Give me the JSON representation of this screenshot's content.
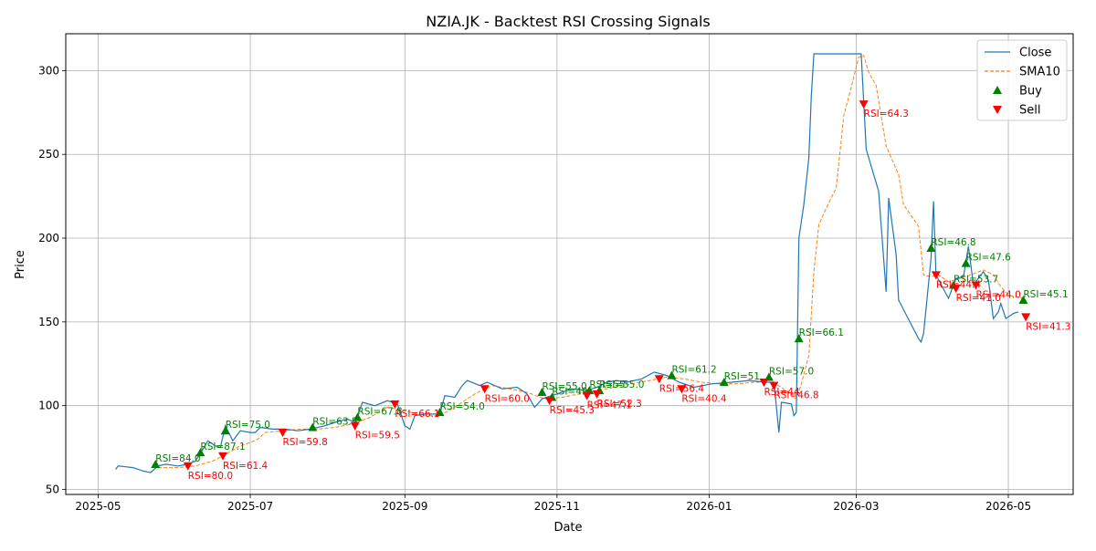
{
  "chart_data": {
    "type": "line",
    "title": "NZIA.JK - Backtest RSI Crossing Signals",
    "xlabel": "Date",
    "ylabel": "Price",
    "xlim": [
      "2025-04-18",
      "2026-05-27"
    ],
    "ylim": [
      47,
      322
    ],
    "x_ticks": [
      "2025-05-01",
      "2025-07-01",
      "2025-09-01",
      "2025-11-01",
      "2026-01-01",
      "2026-03-01",
      "2026-05-01"
    ],
    "x_tick_labels": [
      "2025-05",
      "2025-07",
      "2025-09",
      "2025-11",
      "2026-01",
      "2026-03",
      "2026-05"
    ],
    "y_ticks": [
      50,
      100,
      150,
      200,
      250,
      300
    ],
    "grid": true,
    "legend_position": "top-right",
    "colors": {
      "close": "#1f77b4",
      "sma": "#ff7f0e",
      "buy": "#008000",
      "sell": "#ff0000"
    },
    "series": [
      {
        "name": "Close",
        "style": "solid",
        "points": [
          [
            "2025-05-08",
            62
          ],
          [
            "2025-05-09",
            64
          ],
          [
            "2025-05-12",
            63.5
          ],
          [
            "2025-05-15",
            63
          ],
          [
            "2025-05-19",
            61
          ],
          [
            "2025-05-22",
            60
          ],
          [
            "2025-05-25",
            64
          ],
          [
            "2025-05-28",
            65
          ],
          [
            "2025-06-02",
            64
          ],
          [
            "2025-06-06",
            65
          ],
          [
            "2025-06-09",
            67
          ],
          [
            "2025-06-12",
            74
          ],
          [
            "2025-06-14",
            79
          ],
          [
            "2025-06-17",
            76
          ],
          [
            "2025-06-19",
            75
          ],
          [
            "2025-06-21",
            88
          ],
          [
            "2025-06-24",
            79
          ],
          [
            "2025-06-27",
            85
          ],
          [
            "2025-07-01",
            84
          ],
          [
            "2025-07-03",
            84
          ],
          [
            "2025-07-05",
            87
          ],
          [
            "2025-07-10",
            86
          ],
          [
            "2025-07-15",
            86
          ],
          [
            "2025-07-20",
            85
          ],
          [
            "2025-07-25",
            86
          ],
          [
            "2025-07-31",
            88
          ],
          [
            "2025-08-04",
            90
          ],
          [
            "2025-08-09",
            92
          ],
          [
            "2025-08-12",
            90
          ],
          [
            "2025-08-15",
            102
          ],
          [
            "2025-08-20",
            100
          ],
          [
            "2025-08-25",
            103
          ],
          [
            "2025-08-29",
            101
          ],
          [
            "2025-09-01",
            88
          ],
          [
            "2025-09-03",
            86
          ],
          [
            "2025-09-05",
            94
          ],
          [
            "2025-09-09",
            95
          ],
          [
            "2025-09-15",
            95
          ],
          [
            "2025-09-17",
            106
          ],
          [
            "2025-09-21",
            105
          ],
          [
            "2025-09-24",
            112
          ],
          [
            "2025-09-26",
            115
          ],
          [
            "2025-10-01",
            112
          ],
          [
            "2025-10-04",
            114
          ],
          [
            "2025-10-10",
            110
          ],
          [
            "2025-10-16",
            111
          ],
          [
            "2025-10-20",
            107
          ],
          [
            "2025-10-23",
            99
          ],
          [
            "2025-10-26",
            104
          ],
          [
            "2025-11-01",
            107
          ],
          [
            "2025-11-07",
            110
          ],
          [
            "2025-11-13",
            109
          ],
          [
            "2025-11-17",
            111
          ],
          [
            "2025-11-21",
            114
          ],
          [
            "2025-11-25",
            115
          ],
          [
            "2025-11-29",
            114
          ],
          [
            "2025-12-05",
            116
          ],
          [
            "2025-12-10",
            120
          ],
          [
            "2025-12-15",
            118
          ],
          [
            "2025-12-20",
            114
          ],
          [
            "2025-12-26",
            111
          ],
          [
            "2026-01-02",
            113
          ],
          [
            "2026-01-10",
            114
          ],
          [
            "2026-01-17",
            115
          ],
          [
            "2026-01-24",
            114
          ],
          [
            "2026-01-27",
            114
          ],
          [
            "2026-01-29",
            84
          ],
          [
            "2026-01-30",
            102
          ],
          [
            "2026-02-03",
            101
          ],
          [
            "2026-02-04",
            94
          ],
          [
            "2026-02-05",
            96
          ],
          [
            "2026-02-06",
            200
          ],
          [
            "2026-02-08",
            220
          ],
          [
            "2026-02-10",
            248
          ],
          [
            "2026-02-11",
            285
          ],
          [
            "2026-02-12",
            310
          ],
          [
            "2026-03-03",
            310
          ],
          [
            "2026-03-05",
            253
          ],
          [
            "2026-03-10",
            228
          ],
          [
            "2026-03-13",
            168
          ],
          [
            "2026-03-14",
            224
          ],
          [
            "2026-03-17",
            190
          ],
          [
            "2026-03-18",
            163
          ],
          [
            "2026-03-26",
            140
          ],
          [
            "2026-03-27",
            138
          ],
          [
            "2026-03-28",
            143
          ],
          [
            "2026-03-31",
            188
          ],
          [
            "2026-04-01",
            222
          ],
          [
            "2026-04-02",
            178
          ],
          [
            "2026-04-07",
            164
          ],
          [
            "2026-04-10",
            176
          ],
          [
            "2026-04-13",
            177
          ],
          [
            "2026-04-15",
            195
          ],
          [
            "2026-04-17",
            172
          ],
          [
            "2026-04-21",
            180
          ],
          [
            "2026-04-23",
            175
          ],
          [
            "2026-04-25",
            152
          ],
          [
            "2026-04-27",
            156
          ],
          [
            "2026-04-28",
            161
          ],
          [
            "2026-04-30",
            152
          ],
          [
            "2026-05-03",
            155
          ],
          [
            "2026-05-05",
            156
          ]
        ]
      },
      {
        "name": "SMA10",
        "style": "dashed",
        "points": [
          [
            "2025-05-25",
            63
          ],
          [
            "2025-06-02",
            63
          ],
          [
            "2025-06-09",
            64
          ],
          [
            "2025-06-16",
            67
          ],
          [
            "2025-06-20",
            70
          ],
          [
            "2025-06-27",
            76
          ],
          [
            "2025-07-01",
            78
          ],
          [
            "2025-07-04",
            80
          ],
          [
            "2025-07-07",
            84
          ],
          [
            "2025-07-14",
            85
          ],
          [
            "2025-07-21",
            86
          ],
          [
            "2025-07-28",
            86
          ],
          [
            "2025-08-04",
            87
          ],
          [
            "2025-08-11",
            89
          ],
          [
            "2025-08-18",
            93
          ],
          [
            "2025-08-25",
            99
          ],
          [
            "2025-09-01",
            97
          ],
          [
            "2025-09-08",
            94
          ],
          [
            "2025-09-15",
            94
          ],
          [
            "2025-09-22",
            100
          ],
          [
            "2025-09-29",
            107
          ],
          [
            "2025-10-06",
            112
          ],
          [
            "2025-10-13",
            110
          ],
          [
            "2025-10-20",
            108
          ],
          [
            "2025-10-27",
            104
          ],
          [
            "2025-11-03",
            105
          ],
          [
            "2025-11-10",
            107
          ],
          [
            "2025-11-17",
            109
          ],
          [
            "2025-11-24",
            111
          ],
          [
            "2025-12-01",
            113
          ],
          [
            "2025-12-08",
            115
          ],
          [
            "2025-12-15",
            117
          ],
          [
            "2025-12-22",
            116
          ],
          [
            "2025-12-29",
            114
          ],
          [
            "2026-01-05",
            113
          ],
          [
            "2026-01-12",
            113
          ],
          [
            "2026-01-19",
            114
          ],
          [
            "2026-01-26",
            114
          ],
          [
            "2026-01-30",
            111
          ],
          [
            "2026-02-03",
            106
          ],
          [
            "2026-02-05",
            104
          ],
          [
            "2026-02-07",
            113
          ],
          [
            "2026-02-10",
            130
          ],
          [
            "2026-02-12",
            180
          ],
          [
            "2026-02-14",
            208
          ],
          [
            "2026-02-17",
            218
          ],
          [
            "2026-02-21",
            230
          ],
          [
            "2026-02-24",
            273
          ],
          [
            "2026-02-27",
            290
          ],
          [
            "2026-03-02",
            308
          ],
          [
            "2026-03-04",
            309
          ],
          [
            "2026-03-06",
            299
          ],
          [
            "2026-03-09",
            291
          ],
          [
            "2026-03-13",
            255
          ],
          [
            "2026-03-18",
            238
          ],
          [
            "2026-03-20",
            220
          ],
          [
            "2026-03-26",
            207
          ],
          [
            "2026-03-28",
            178
          ],
          [
            "2026-03-31",
            177
          ],
          [
            "2026-04-03",
            178
          ],
          [
            "2026-04-07",
            174
          ],
          [
            "2026-04-14",
            177
          ],
          [
            "2026-04-21",
            181
          ],
          [
            "2026-04-25",
            178
          ],
          [
            "2026-04-28",
            171
          ],
          [
            "2026-05-01",
            166
          ],
          [
            "2026-05-04",
            165
          ],
          [
            "2026-05-07",
            164
          ]
        ]
      }
    ],
    "buy_signals": [
      {
        "date": "2025-05-24",
        "price": 65,
        "label": "RSI=84.0"
      },
      {
        "date": "2025-06-11",
        "price": 72,
        "label": "RSI=87.1"
      },
      {
        "date": "2025-06-21",
        "price": 85,
        "label": "RSI=75.0"
      },
      {
        "date": "2025-07-26",
        "price": 87,
        "label": "RSI=63.5"
      },
      {
        "date": "2025-08-13",
        "price": 93,
        "label": "RSI=67.8"
      },
      {
        "date": "2025-09-15",
        "price": 96,
        "label": "RSI=54.0"
      },
      {
        "date": "2025-10-26",
        "price": 108,
        "label": "RSI=55.0"
      },
      {
        "date": "2025-10-30",
        "price": 105,
        "label": "RSI=49"
      },
      {
        "date": "2025-11-14",
        "price": 109,
        "label": "RSI=55"
      },
      {
        "date": "2025-11-18",
        "price": 109,
        "label": "RSI=55.0"
      },
      {
        "date": "2025-12-17",
        "price": 118,
        "label": "RSI=61.2"
      },
      {
        "date": "2026-01-07",
        "price": 114,
        "label": "RSI=51"
      },
      {
        "date": "2026-01-25",
        "price": 117,
        "label": "RSI=57.0"
      },
      {
        "date": "2026-02-06",
        "price": 140,
        "label": "RSI=66.1"
      },
      {
        "date": "2026-03-31",
        "price": 194,
        "label": "RSI=46.8"
      },
      {
        "date": "2026-04-09",
        "price": 172,
        "label": "RSI=53.7"
      },
      {
        "date": "2026-04-14",
        "price": 185,
        "label": "RSI=47.6"
      },
      {
        "date": "2026-05-07",
        "price": 163,
        "label": "RSI=45.1"
      }
    ],
    "sell_signals": [
      {
        "date": "2025-06-06",
        "price": 64,
        "label": "RSI=80.0"
      },
      {
        "date": "2025-06-20",
        "price": 70,
        "label": "RSI=61.4"
      },
      {
        "date": "2025-07-14",
        "price": 84,
        "label": "RSI=59.8"
      },
      {
        "date": "2025-08-12",
        "price": 88,
        "label": "RSI=59.5"
      },
      {
        "date": "2025-08-28",
        "price": 101,
        "label": "RSI=66.1"
      },
      {
        "date": "2025-10-03",
        "price": 110,
        "label": "RSI=60.0"
      },
      {
        "date": "2025-10-29",
        "price": 103,
        "label": "RSI=45.3"
      },
      {
        "date": "2025-11-13",
        "price": 106,
        "label": "RSI=47.1"
      },
      {
        "date": "2025-11-17",
        "price": 107,
        "label": "RSI=52.3"
      },
      {
        "date": "2025-12-12",
        "price": 116,
        "label": "RSI=56.4"
      },
      {
        "date": "2025-12-21",
        "price": 110,
        "label": "RSI=40.4"
      },
      {
        "date": "2026-01-23",
        "price": 114,
        "label": "RSI=44"
      },
      {
        "date": "2026-01-27",
        "price": 112,
        "label": "RSI=46.8"
      },
      {
        "date": "2026-03-04",
        "price": 280,
        "label": "RSI=64.3"
      },
      {
        "date": "2026-04-02",
        "price": 178,
        "label": "RSI=44.4"
      },
      {
        "date": "2026-04-10",
        "price": 170,
        "label": "RSI=41.0"
      },
      {
        "date": "2026-04-18",
        "price": 172,
        "label": "RSI=44.0"
      },
      {
        "date": "2026-05-08",
        "price": 153,
        "label": "RSI=41.3"
      }
    ],
    "legend": [
      {
        "label": "Close",
        "kind": "line",
        "color": "#1f77b4"
      },
      {
        "label": "SMA10",
        "kind": "dashed",
        "color": "#ff7f0e"
      },
      {
        "label": "Buy",
        "kind": "up-triangle",
        "color": "#008000"
      },
      {
        "label": "Sell",
        "kind": "down-triangle",
        "color": "#ff0000"
      }
    ]
  }
}
